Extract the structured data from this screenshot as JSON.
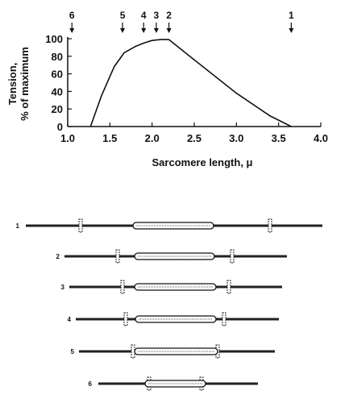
{
  "chart_data": {
    "type": "line",
    "title": "",
    "xlabel": "Sarcomere length, μ",
    "ylabel_lines": [
      "Tension,",
      "% of maximum"
    ],
    "xlim": [
      1.0,
      4.0
    ],
    "ylim": [
      0,
      100
    ],
    "x_ticks": [
      "1.0",
      "1.5",
      "2.0",
      "2.5",
      "3.0",
      "3.5",
      "4.0"
    ],
    "y_ticks": [
      "0",
      "20",
      "40",
      "60",
      "80",
      "100"
    ],
    "series": [
      {
        "x": [
          1.27,
          1.4,
          1.55,
          1.67,
          1.8,
          1.9,
          2.0,
          2.1,
          2.2,
          2.5,
          3.0,
          3.4,
          3.65
        ],
        "y": [
          0,
          35,
          68,
          84,
          91,
          95,
          98,
          99,
          99,
          76,
          38,
          12,
          0
        ]
      }
    ],
    "markers": [
      {
        "label": "6",
        "x": 1.05
      },
      {
        "label": "5",
        "x": 1.65
      },
      {
        "label": "4",
        "x": 1.9
      },
      {
        "label": "3",
        "x": 2.05
      },
      {
        "label": "2",
        "x": 2.2
      },
      {
        "label": "1",
        "x": 3.65
      }
    ],
    "grid": false
  },
  "sarcomere_rows": [
    {
      "label": "1"
    },
    {
      "label": "2"
    },
    {
      "label": "3"
    },
    {
      "label": "4"
    },
    {
      "label": "5"
    },
    {
      "label": "6"
    }
  ]
}
